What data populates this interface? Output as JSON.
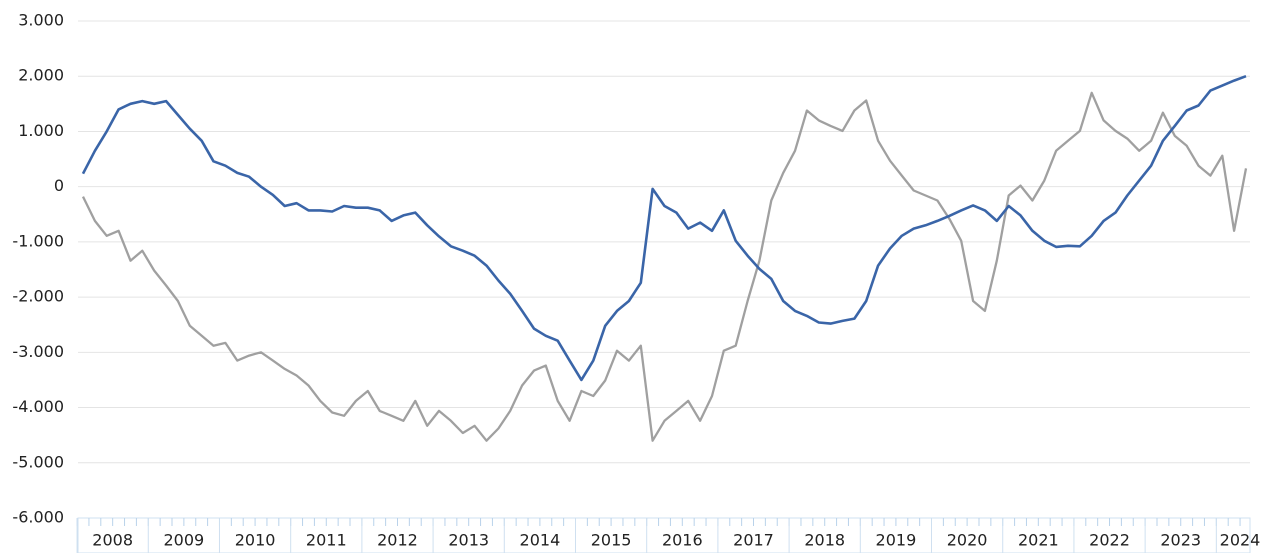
{
  "chart_data": {
    "type": "line",
    "categories": [
      "2008",
      null,
      null,
      null,
      null,
      null,
      "2009",
      null,
      null,
      null,
      null,
      null,
      "2010",
      null,
      null,
      null,
      null,
      null,
      "2011",
      null,
      null,
      null,
      null,
      null,
      "2012",
      null,
      null,
      null,
      null,
      null,
      "2013",
      null,
      null,
      null,
      null,
      null,
      "2014",
      null,
      null,
      null,
      null,
      null,
      "2015",
      null,
      null,
      null,
      null,
      null,
      "2016",
      null,
      null,
      null,
      null,
      null,
      "2017",
      null,
      null,
      null,
      null,
      null,
      "2018",
      null,
      null,
      null,
      null,
      null,
      "2019",
      null,
      null,
      null,
      null,
      null,
      "2020",
      null,
      null,
      null,
      null,
      null,
      "2021",
      null,
      null,
      null,
      null,
      null,
      "2022",
      null,
      null,
      null,
      null,
      null,
      "2023",
      null,
      null,
      null,
      null,
      null,
      "2024",
      null,
      null
    ],
    "series": [
      {
        "color": "#3a65a8",
        "values": [
          235,
          650,
          1000,
          1400,
          1500,
          1550,
          1500,
          1550,
          1300,
          1050,
          830,
          460,
          380,
          250,
          180,
          0,
          -150,
          -350,
          -300,
          -430,
          -430,
          -450,
          -350,
          -380,
          -380,
          -430,
          -620,
          -520,
          -470,
          -700,
          -900,
          -1080,
          -1160,
          -1250,
          -1430,
          -1700,
          -1940,
          -2250,
          -2570,
          -2700,
          -2790,
          -3150,
          -3500,
          -3150,
          -2520,
          -2250,
          -2070,
          -1740,
          -40,
          -350,
          -470,
          -760,
          -650,
          -800,
          -430,
          -980,
          -1250,
          -1490,
          -1670,
          -2070,
          -2250,
          -2340,
          -2460,
          -2480,
          -2430,
          -2390,
          -2070,
          -1430,
          -1120,
          -890,
          -760,
          -700,
          -620,
          -530,
          -430,
          -340,
          -430,
          -620,
          -350,
          -520,
          -800,
          -980,
          -1090,
          -1070,
          -1080,
          -890,
          -620,
          -470,
          -160,
          110,
          380,
          830,
          1100,
          1380,
          1470,
          1740,
          1830,
          1920,
          2000
        ]
      },
      {
        "color": "#a0a0a0",
        "values": [
          -180,
          -620,
          -890,
          -800,
          -1340,
          -1160,
          -1520,
          -1790,
          -2070,
          -2520,
          -2700,
          -2880,
          -2830,
          -3150,
          -3060,
          -3000,
          -3150,
          -3300,
          -3420,
          -3600,
          -3880,
          -4090,
          -4150,
          -3880,
          -3700,
          -4060,
          -4150,
          -4240,
          -3880,
          -4330,
          -4060,
          -4240,
          -4460,
          -4330,
          -4600,
          -4380,
          -4060,
          -3600,
          -3330,
          -3240,
          -3880,
          -4240,
          -3700,
          -3790,
          -3510,
          -2970,
          -3150,
          -2880,
          -4600,
          -4240,
          -4060,
          -3880,
          -4240,
          -3790,
          -2970,
          -2880,
          -2070,
          -1340,
          -250,
          250,
          650,
          1380,
          1200,
          1100,
          1010,
          1380,
          1560,
          830,
          470,
          200,
          -70,
          -160,
          -250,
          -580,
          -980,
          -2070,
          -2250,
          -1340,
          -160,
          20,
          -250,
          110,
          650,
          830,
          1010,
          1700,
          1200,
          1010,
          870,
          650,
          830,
          1340,
          920,
          740,
          380,
          200,
          560,
          -800,
          330
        ]
      }
    ],
    "ylim": [
      -6000,
      3000
    ],
    "yticks": [
      {
        "value": -6000,
        "label": "-6.000"
      },
      {
        "value": -5000,
        "label": "-5.000"
      },
      {
        "value": -4000,
        "label": "-4.000"
      },
      {
        "value": -3000,
        "label": "-3.000"
      },
      {
        "value": -2000,
        "label": "-2.000"
      },
      {
        "value": -1000,
        "label": "-1.000"
      },
      0,
      {
        "value": 1000,
        "label": "1.000"
      },
      {
        "value": 2000,
        "label": "2.000"
      },
      {
        "value": 3000,
        "label": "3.000"
      }
    ],
    "grid": true
  }
}
